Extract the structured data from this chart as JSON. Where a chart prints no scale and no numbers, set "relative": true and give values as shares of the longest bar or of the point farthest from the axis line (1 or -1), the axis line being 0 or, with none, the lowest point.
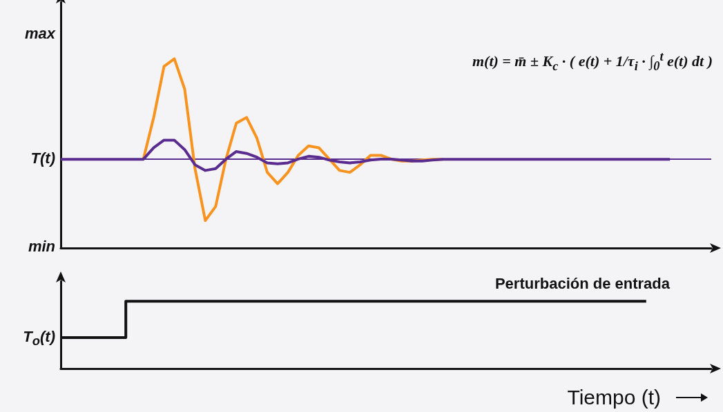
{
  "chart_data": [
    {
      "type": "line",
      "relative": true,
      "categories": [
        null,
        null,
        null,
        null,
        null,
        null,
        null,
        null,
        null,
        null,
        null,
        null,
        null,
        null,
        null,
        null,
        null,
        null,
        null,
        null,
        null,
        null,
        null,
        null,
        null,
        null,
        null,
        null,
        null,
        null,
        null,
        null,
        null,
        null,
        null,
        null,
        null,
        null,
        null,
        null,
        null,
        null,
        null,
        null,
        null,
        null,
        null,
        null,
        null,
        null,
        null,
        null,
        null,
        null,
        null,
        null,
        null,
        null,
        null,
        null
      ],
      "series": [
        {
          "color": "#f7931e",
          "values": [
            null,
            null,
            null,
            null,
            null,
            null,
            null,
            null,
            0.47,
            0.69,
            0.96,
            1.0,
            0.84,
            0.42,
            0.145,
            0.22,
            0.47,
            0.66,
            0.69,
            0.58,
            0.4,
            0.34,
            0.4,
            0.49,
            0.54,
            0.53,
            0.47,
            0.41,
            0.4,
            0.44,
            0.49,
            0.49,
            0.47,
            0.46,
            0.46,
            0.465,
            0.469,
            0.469,
            null,
            null,
            null,
            null,
            null,
            null,
            null,
            null,
            null,
            null,
            null,
            null,
            null,
            null,
            null,
            null,
            null,
            null,
            null,
            null,
            null,
            null
          ]
        },
        {
          "color": "#5b2c8f",
          "values": [
            0.469,
            0.469,
            0.469,
            0.469,
            0.469,
            0.469,
            0.469,
            0.469,
            0.469,
            0.53,
            0.57,
            0.57,
            0.52,
            0.44,
            0.41,
            0.42,
            0.47,
            0.51,
            0.5,
            0.48,
            0.45,
            0.445,
            0.45,
            0.47,
            0.485,
            0.48,
            0.465,
            0.455,
            0.45,
            0.455,
            0.465,
            0.47,
            0.47,
            0.465,
            0.46,
            0.46,
            0.465,
            0.469,
            0.469,
            0.469,
            0.469,
            0.469,
            0.469,
            0.469,
            0.469,
            0.469,
            0.469,
            0.469,
            0.469,
            0.469,
            0.469,
            0.469,
            0.469,
            0.469,
            0.469,
            0.469,
            0.469,
            0.469,
            0.469,
            0.469
          ]
        }
      ],
      "ref_lines": [
        {
          "axis": "y",
          "value": 0.469,
          "color": "#5b2c8f"
        }
      ],
      "annotations": [
        "max",
        "T(t)",
        "min",
        "m(t) = m̄ ± K$_{c}$ · ( e(t) + 1/τ$_{i}$ · ∫$_{0}$$^{t}$ e(t) dt )"
      ],
      "grid": false,
      "legend": false,
      "marker": "none"
    },
    {
      "type": "step",
      "relative": true,
      "categories": [
        null,
        null,
        null,
        null,
        null,
        null,
        null,
        null,
        null,
        null
      ],
      "series": [
        {
          "name": "Perturbación de entrada",
          "color": "#111111",
          "values": [
            0.46,
            1,
            1,
            1,
            1,
            1,
            1,
            1,
            1,
            1
          ]
        }
      ],
      "xlabel": "Tiempo (t)",
      "annotations": [
        "T$_{o}$(t)"
      ],
      "grid": false,
      "legend": "top right",
      "marker": "none"
    }
  ]
}
